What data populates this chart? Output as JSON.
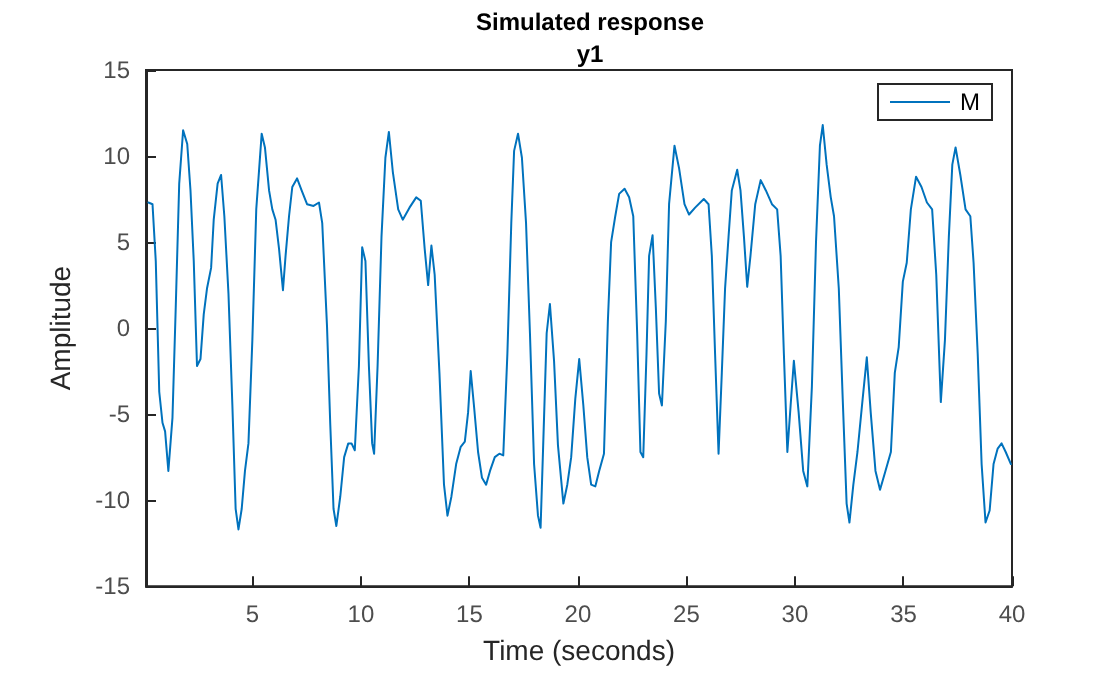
{
  "chart_data": {
    "type": "line",
    "title": "Simulated response",
    "subtitle": "y1",
    "xlabel": "Time (seconds)",
    "ylabel": "Amplitude",
    "xlim": [
      0.1,
      40
    ],
    "xticks": [
      5,
      10,
      15,
      20,
      25,
      30,
      35,
      40
    ],
    "ylim": [
      -15,
      15
    ],
    "yticks": [
      -15,
      -10,
      -5,
      0,
      5,
      10,
      15
    ],
    "grid": false,
    "legend": "top right",
    "marker": "none",
    "line_style": "solid",
    "series": [
      {
        "name": "M",
        "color": "#0072bd",
        "x": [
          0.21,
          0.4,
          0.55,
          0.71,
          0.86,
          0.98,
          1.13,
          1.32,
          1.47,
          1.63,
          1.81,
          2.0,
          2.15,
          2.3,
          2.45,
          2.61,
          2.76,
          2.91,
          3.1,
          3.22,
          3.4,
          3.56,
          3.71,
          3.9,
          4.08,
          4.23,
          4.36,
          4.51,
          4.66,
          4.82,
          5.0,
          5.18,
          5.43,
          5.58,
          5.77,
          5.92,
          6.07,
          6.23,
          6.41,
          6.53,
          6.69,
          6.84,
          7.06,
          7.27,
          7.52,
          7.82,
          8.07,
          8.22,
          8.44,
          8.59,
          8.74,
          8.87,
          9.05,
          9.23,
          9.42,
          9.57,
          9.72,
          9.91,
          10.06,
          10.21,
          10.37,
          10.52,
          10.61,
          10.77,
          10.95,
          11.13,
          11.29,
          11.47,
          11.72,
          11.93,
          12.24,
          12.55,
          12.76,
          12.94,
          13.1,
          13.25,
          13.4,
          13.62,
          13.83,
          13.99,
          14.17,
          14.39,
          14.6,
          14.79,
          14.94,
          15.06,
          15.21,
          15.4,
          15.58,
          15.77,
          15.95,
          16.17,
          16.38,
          16.56,
          16.75,
          16.93,
          17.06,
          17.24,
          17.42,
          17.61,
          17.79,
          17.98,
          18.16,
          18.28,
          18.4,
          18.56,
          18.71,
          18.9,
          19.08,
          19.33,
          19.51,
          19.69,
          19.88,
          20.06,
          20.25,
          20.43,
          20.61,
          20.8,
          20.98,
          21.2,
          21.38,
          21.53,
          21.72,
          21.9,
          22.15,
          22.36,
          22.55,
          22.73,
          22.88,
          23.01,
          23.16,
          23.28,
          23.44,
          23.59,
          23.74,
          23.87,
          24.05,
          24.2,
          24.45,
          24.66,
          24.91,
          25.12,
          25.4,
          25.8,
          26.02,
          26.17,
          26.32,
          26.48,
          26.63,
          26.78,
          26.94,
          27.09,
          27.34,
          27.49,
          27.65,
          27.8,
          27.95,
          28.17,
          28.42,
          28.66,
          28.94,
          29.18,
          29.34,
          29.49,
          29.65,
          29.8,
          29.95,
          30.17,
          30.38,
          30.57,
          30.78,
          30.97,
          31.15,
          31.28,
          31.46,
          31.65,
          31.8,
          32.02,
          32.2,
          32.38,
          32.51,
          32.69,
          32.88,
          33.12,
          33.31,
          33.49,
          33.71,
          33.92,
          34.17,
          34.42,
          34.6,
          34.78,
          34.97,
          35.15,
          35.34,
          35.58,
          35.83,
          36.08,
          36.32,
          36.51,
          36.72,
          36.91,
          37.09,
          37.25,
          37.4,
          37.62,
          37.86,
          38.08,
          38.23,
          38.42,
          38.6,
          38.78,
          38.97,
          39.15,
          39.34,
          39.52,
          39.71,
          39.95
        ],
        "values": [
          7.3,
          7.2,
          3.9,
          -3.7,
          -5.5,
          -6,
          -8.3,
          -5.2,
          1.2,
          8.4,
          11.5,
          10.7,
          8,
          3.9,
          -2.2,
          -1.8,
          0.8,
          2.3,
          3.5,
          6.3,
          8.4,
          8.9,
          6.5,
          2,
          -4.5,
          -10.5,
          -11.7,
          -10.5,
          -8.3,
          -6.7,
          -0.7,
          6.9,
          11.3,
          10.5,
          8,
          6.9,
          6.3,
          4.6,
          2.2,
          4.2,
          6.5,
          8.2,
          8.7,
          8,
          7.2,
          7.1,
          7.3,
          6.1,
          0.1,
          -5.6,
          -10.5,
          -11.5,
          -9.8,
          -7.5,
          -6.7,
          -6.7,
          -7.1,
          -2.2,
          4.7,
          3.9,
          -2.2,
          -6.7,
          -7.3,
          -2.2,
          5.3,
          9.9,
          11.4,
          9.1,
          6.9,
          6.3,
          7.0,
          7.6,
          7.4,
          4.6,
          2.5,
          4.8,
          3.1,
          -2.6,
          -9.1,
          -10.9,
          -9.8,
          -7.9,
          -6.9,
          -6.6,
          -4.9,
          -2.5,
          -4.5,
          -7.2,
          -8.7,
          -9.1,
          -8.3,
          -7.5,
          -7.3,
          -7.4,
          -1.5,
          6.1,
          10.3,
          11.3,
          9.9,
          6.1,
          -0.3,
          -7.9,
          -10.9,
          -11.6,
          -6.8,
          -0.3,
          1.4,
          -1.9,
          -6.8,
          -10.2,
          -9.1,
          -7.5,
          -4.1,
          -1.8,
          -4.5,
          -7.5,
          -9.1,
          -9.2,
          -8.3,
          -7.3,
          0.4,
          5.0,
          6.5,
          7.8,
          8.1,
          7.6,
          6.5,
          -0.3,
          -7.2,
          -7.5,
          -1.5,
          4.2,
          5.4,
          1.2,
          -3.8,
          -4.5,
          0.4,
          7.2,
          10.6,
          9.3,
          7.2,
          6.6,
          7.0,
          7.5,
          7.2,
          4.2,
          -1.5,
          -7.3,
          -2.6,
          2.3,
          5.3,
          8.0,
          9.2,
          8.0,
          5.3,
          2.4,
          4.2,
          7.2,
          8.6,
          8.0,
          7.2,
          6.9,
          4.2,
          -1.5,
          -7.2,
          -4.5,
          -1.9,
          -4.9,
          -8.3,
          -9.2,
          -3.4,
          5.0,
          10.6,
          11.8,
          9.5,
          7.6,
          6.5,
          2.3,
          -4.1,
          -10.2,
          -11.3,
          -9.1,
          -7.2,
          -4.1,
          -1.7,
          -4.9,
          -8.3,
          -9.4,
          -8.3,
          -7.2,
          -2.6,
          -1.1,
          2.7,
          3.8,
          6.9,
          8.8,
          8.2,
          7.3,
          6.9,
          3.1,
          -4.3,
          -0.7,
          5.3,
          9.5,
          10.5,
          8.9,
          6.9,
          6.5,
          3.8,
          -1.5,
          -7.9,
          -11.3,
          -10.6,
          -7.9,
          -7.0,
          -6.7,
          -7.2,
          -7.9
        ]
      }
    ]
  }
}
